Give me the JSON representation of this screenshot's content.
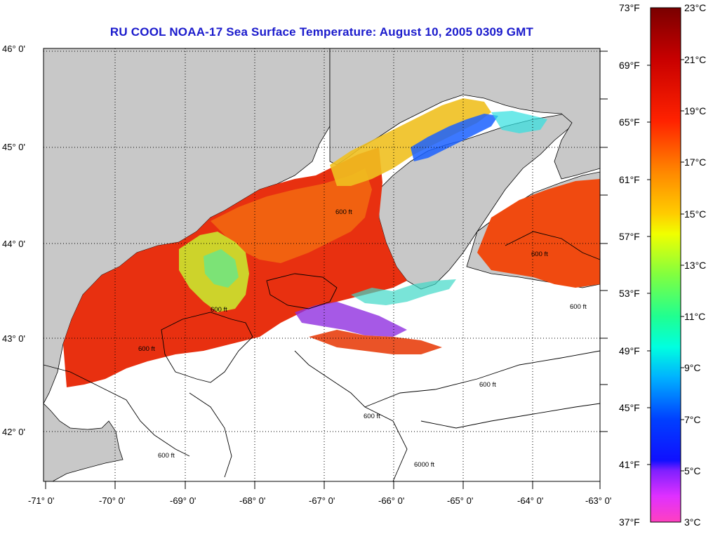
{
  "title": "RU COOL  NOAA-17  Sea Surface Temperature:  August 10, 2005 0309 GMT",
  "lat_labels": [
    "46° 0'",
    "45° 0'",
    "44° 0'",
    "43° 0'",
    "42° 0'"
  ],
  "lon_labels": [
    "-71° 0'",
    "-70° 0'",
    "-69° 0'",
    "-68° 0'",
    "-67° 0'",
    "-66° 0'",
    "-65° 0'",
    "-64° 0'",
    "-63° 0'"
  ],
  "contour_label": "600 ft",
  "contour_label_deep": "6000 ft",
  "colorbar": {
    "fahrenheit": [
      "73°F",
      "69°F",
      "65°F",
      "61°F",
      "57°F",
      "53°F",
      "49°F",
      "45°F",
      "41°F",
      "37°F"
    ],
    "celsius": [
      "23°C",
      "21°C",
      "19°C",
      "17°C",
      "15°C",
      "13°C",
      "11°C",
      "9°C",
      "7°C",
      "5°C",
      "3°C"
    ]
  },
  "colors": {
    "land": "#c8c8c8",
    "water_nodata": "#ffffff",
    "title": "#1a1acc"
  }
}
